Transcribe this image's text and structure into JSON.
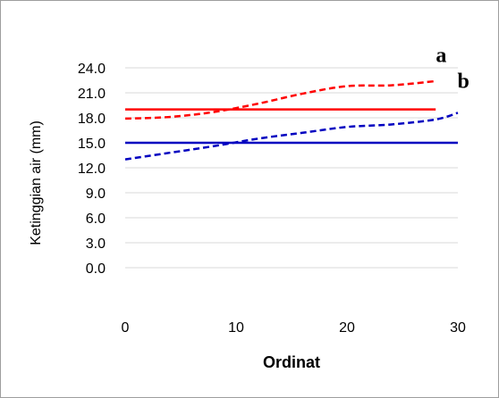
{
  "chart_data": {
    "type": "line",
    "xlabel": "Ordinat",
    "ylabel": "Ketinggian air (mm)",
    "xlim": [
      0,
      30
    ],
    "ylim": [
      0,
      24
    ],
    "x_ticks": [
      "0",
      "10",
      "20",
      "30"
    ],
    "y_ticks": [
      "0.0",
      "3.0",
      "6.0",
      "9.0",
      "12.0",
      "15.0",
      "18.0",
      "21.0",
      "24.0"
    ],
    "grid": "horizontal",
    "legend": "none",
    "series": [
      {
        "style": "solid",
        "color": "#ff0000",
        "x": [
          0,
          28
        ],
        "y": [
          19.0,
          19.0
        ]
      },
      {
        "style": "dashed",
        "color": "#ff0000",
        "x": [
          0,
          4,
          8,
          12,
          16,
          20,
          24,
          28
        ],
        "y": [
          17.9,
          18.1,
          18.7,
          19.7,
          20.9,
          21.8,
          21.9,
          22.4
        ]
      },
      {
        "style": "solid",
        "color": "#0000c0",
        "x": [
          0,
          30
        ],
        "y": [
          15.0,
          15.0
        ]
      },
      {
        "style": "dashed",
        "color": "#0000c0",
        "x": [
          0,
          4,
          8,
          12,
          16,
          20,
          24,
          28,
          30
        ],
        "y": [
          13.0,
          13.8,
          14.6,
          15.5,
          16.2,
          16.9,
          17.2,
          17.8,
          18.6
        ]
      }
    ],
    "annotations": [
      {
        "text": "a",
        "x": 28.5,
        "y": 24.7
      },
      {
        "text": "b",
        "x": 30.5,
        "y": 21.6
      }
    ]
  }
}
